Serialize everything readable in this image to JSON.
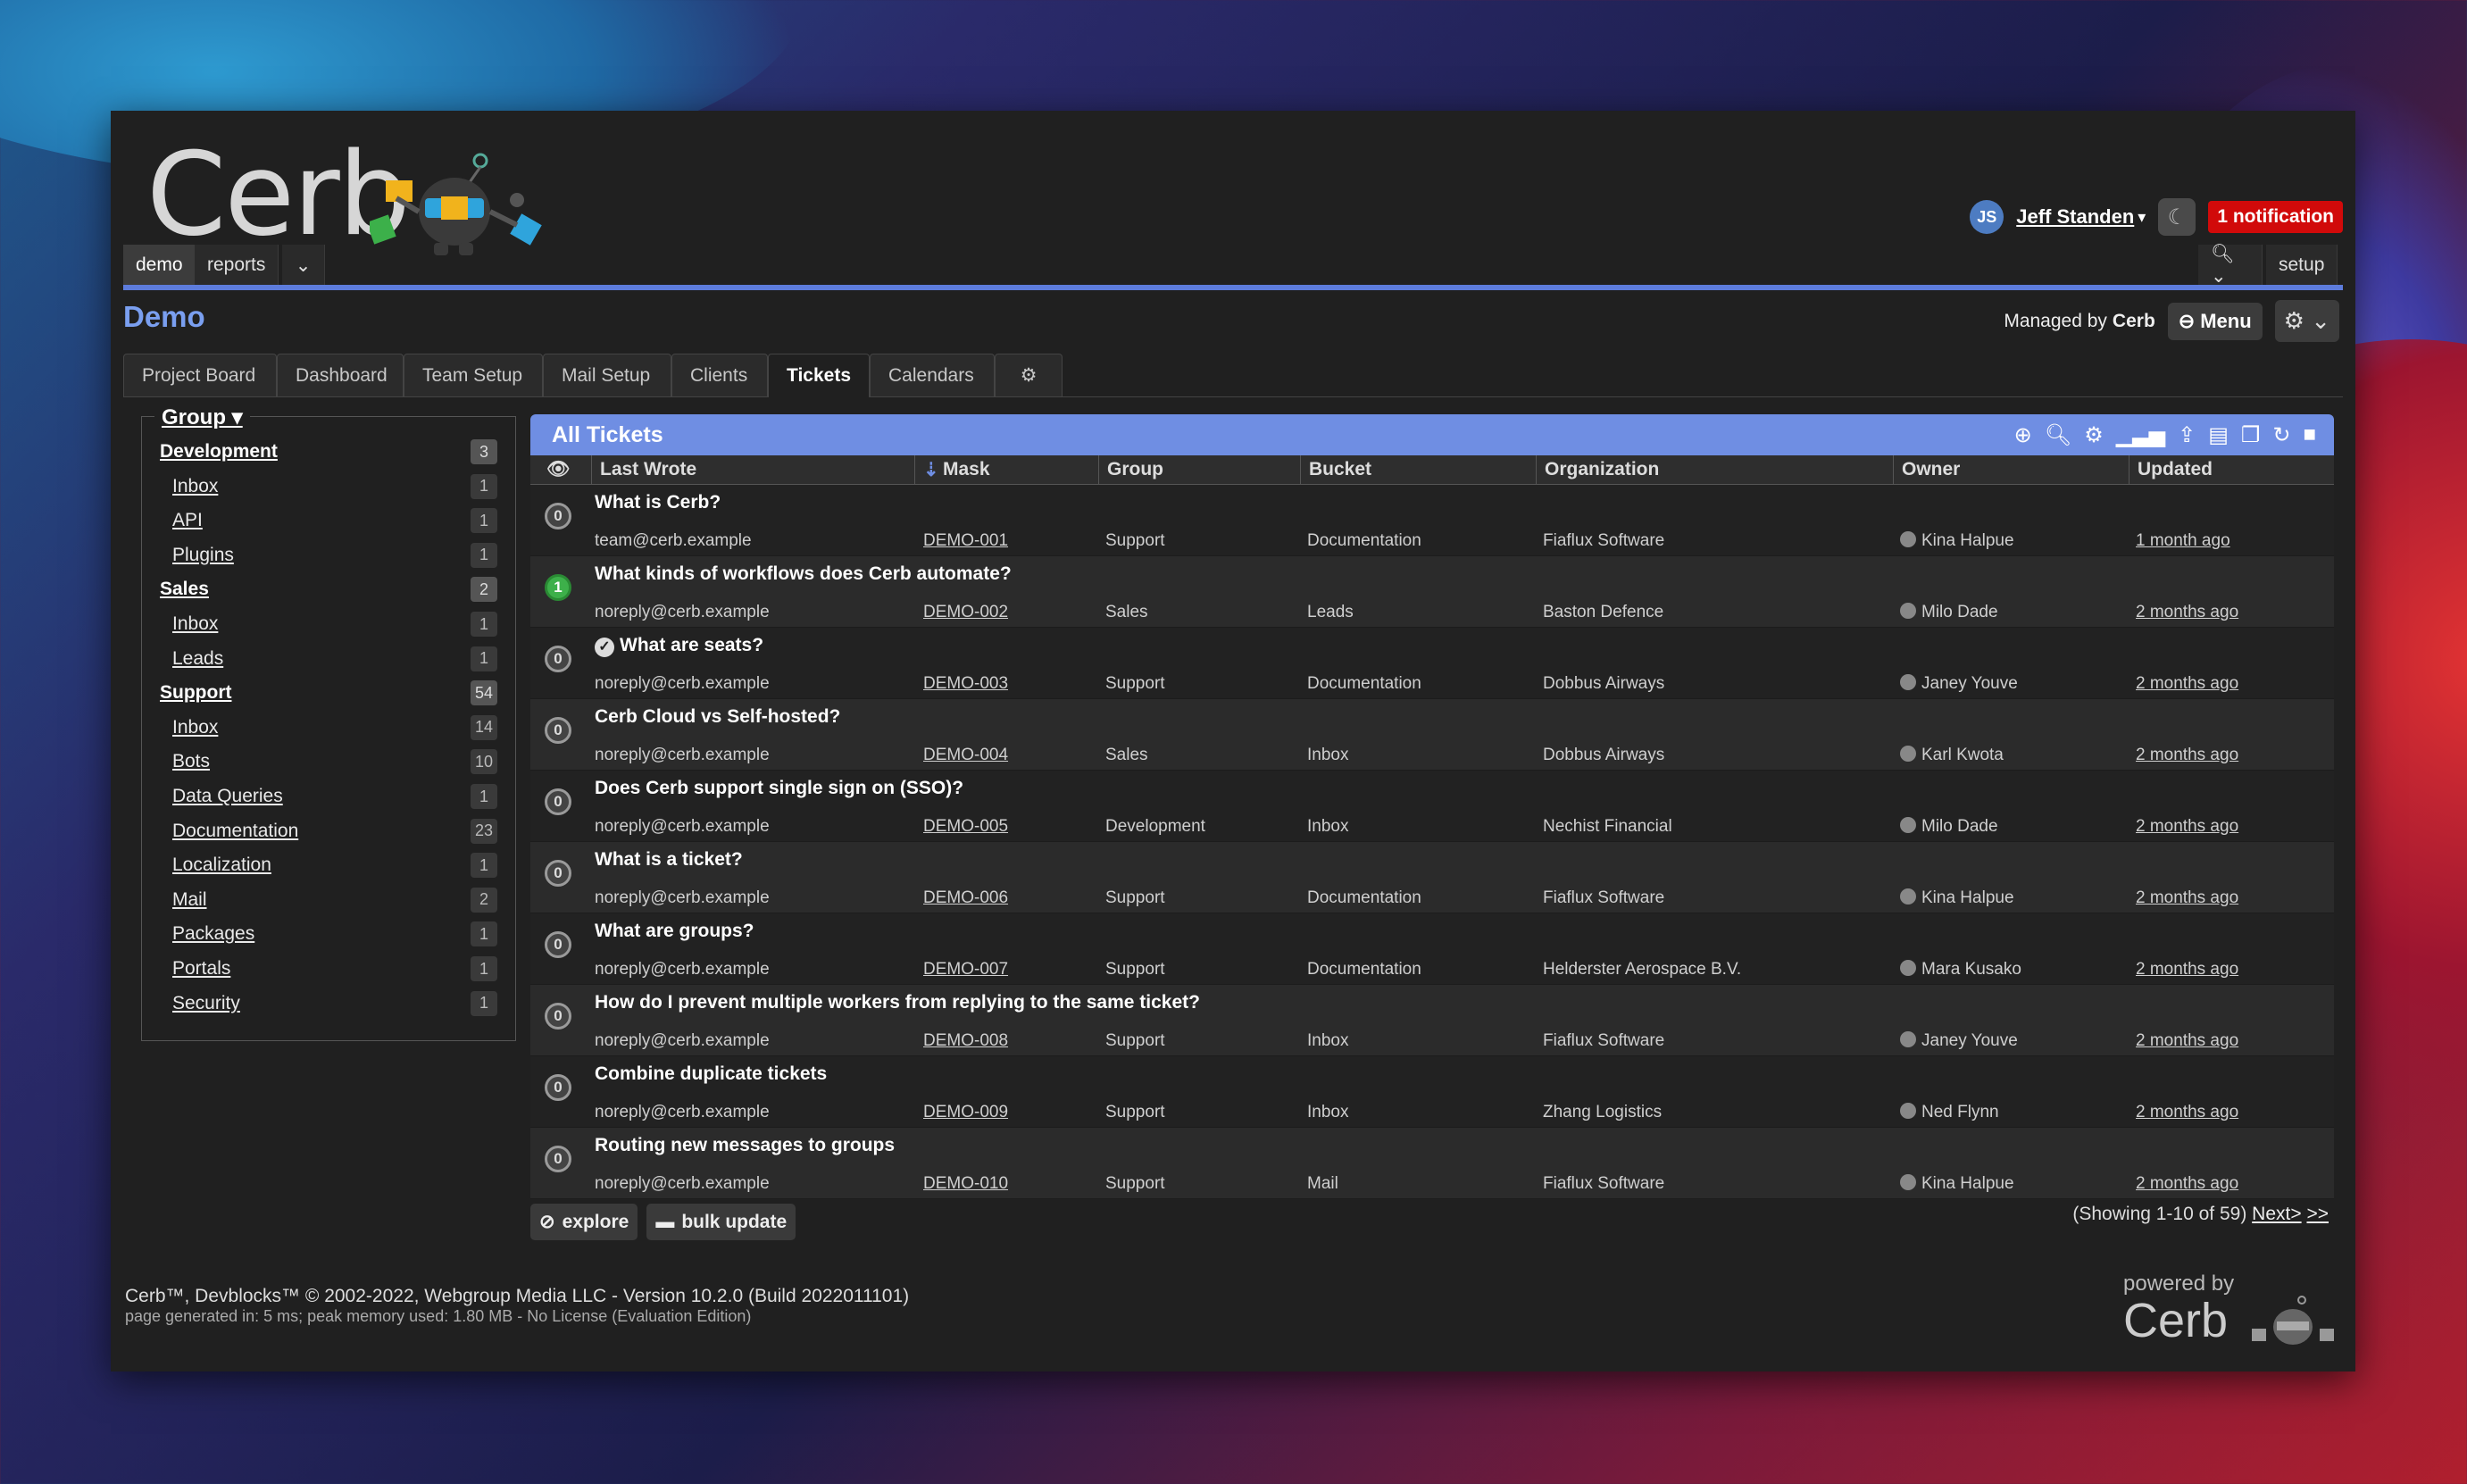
{
  "app": {
    "logo_text": "Cerb"
  },
  "user": {
    "initials": "JS",
    "name": "Jeff Standen",
    "notifications": "1 notification"
  },
  "topnav": {
    "tabs": [
      "demo",
      "reports"
    ],
    "setup": "setup"
  },
  "page": {
    "title": "Demo",
    "managed_by_label": "Managed by",
    "managed_by": "Cerb",
    "menu": "Menu"
  },
  "tabs": [
    "Project Board",
    "Dashboard",
    "Team Setup",
    "Mail Setup",
    "Clients",
    "Tickets",
    "Calendars"
  ],
  "groups": {
    "legend": "Group",
    "items": [
      {
        "label": "Development",
        "count": "3",
        "top": true
      },
      {
        "label": "Inbox",
        "count": "1"
      },
      {
        "label": "API",
        "count": "1"
      },
      {
        "label": "Plugins",
        "count": "1"
      },
      {
        "label": "Sales",
        "count": "2",
        "top": true
      },
      {
        "label": "Inbox",
        "count": "1"
      },
      {
        "label": "Leads",
        "count": "1"
      },
      {
        "label": "Support",
        "count": "54",
        "top": true
      },
      {
        "label": "Inbox",
        "count": "14"
      },
      {
        "label": "Bots",
        "count": "10"
      },
      {
        "label": "Data Queries",
        "count": "1"
      },
      {
        "label": "Documentation",
        "count": "23"
      },
      {
        "label": "Localization",
        "count": "1"
      },
      {
        "label": "Mail",
        "count": "2"
      },
      {
        "label": "Packages",
        "count": "1"
      },
      {
        "label": "Portals",
        "count": "1"
      },
      {
        "label": "Security",
        "count": "1"
      }
    ]
  },
  "worklist": {
    "title": "All Tickets",
    "columns": [
      "Last Wrote",
      "Mask",
      "Group",
      "Bucket",
      "Organization",
      "Owner",
      "Updated"
    ],
    "rows": [
      {
        "badge": "0",
        "subject": "What is Cerb?",
        "wrote": "team@cerb.example",
        "mask": "DEMO-001",
        "group": "Support",
        "bucket": "Documentation",
        "org": "Fiaflux Software",
        "owner": "Kina Halpue",
        "updated": "1 month ago"
      },
      {
        "badge": "1",
        "subject": "What kinds of workflows does Cerb automate?",
        "wrote": "noreply@cerb.example",
        "mask": "DEMO-002",
        "group": "Sales",
        "bucket": "Leads",
        "org": "Baston Defence",
        "owner": "Milo Dade",
        "updated": "2 months ago"
      },
      {
        "badge": "0",
        "subject": "What are seats?",
        "wrote": "noreply@cerb.example",
        "mask": "DEMO-003",
        "group": "Support",
        "bucket": "Documentation",
        "org": "Dobbus Airways",
        "owner": "Janey Youve",
        "updated": "2 months ago"
      },
      {
        "badge": "0",
        "subject": "Cerb Cloud vs Self-hosted?",
        "wrote": "noreply@cerb.example",
        "mask": "DEMO-004",
        "group": "Sales",
        "bucket": "Inbox",
        "org": "Dobbus Airways",
        "owner": "Karl Kwota",
        "updated": "2 months ago"
      },
      {
        "badge": "0",
        "subject": "Does Cerb support single sign on (SSO)?",
        "wrote": "noreply@cerb.example",
        "mask": "DEMO-005",
        "group": "Development",
        "bucket": "Inbox",
        "org": "Nechist Financial",
        "owner": "Milo Dade",
        "updated": "2 months ago"
      },
      {
        "badge": "0",
        "subject": "What is a ticket?",
        "wrote": "noreply@cerb.example",
        "mask": "DEMO-006",
        "group": "Support",
        "bucket": "Documentation",
        "org": "Fiaflux Software",
        "owner": "Kina Halpue",
        "updated": "2 months ago"
      },
      {
        "badge": "0",
        "subject": "What are groups?",
        "wrote": "noreply@cerb.example",
        "mask": "DEMO-007",
        "group": "Support",
        "bucket": "Documentation",
        "org": "Helderster Aerospace B.V.",
        "owner": "Mara Kusako",
        "updated": "2 months ago"
      },
      {
        "badge": "0",
        "subject": "How do I prevent multiple workers from replying to the same ticket?",
        "wrote": "noreply@cerb.example",
        "mask": "DEMO-008",
        "group": "Support",
        "bucket": "Inbox",
        "org": "Fiaflux Software",
        "owner": "Janey Youve",
        "updated": "2 months ago"
      },
      {
        "badge": "0",
        "subject": "Combine duplicate tickets",
        "wrote": "noreply@cerb.example",
        "mask": "DEMO-009",
        "group": "Support",
        "bucket": "Inbox",
        "org": "Zhang Logistics",
        "owner": "Ned Flynn",
        "updated": "2 months ago"
      },
      {
        "badge": "0",
        "subject": "Routing new messages to groups",
        "wrote": "noreply@cerb.example",
        "mask": "DEMO-010",
        "group": "Support",
        "bucket": "Mail",
        "org": "Fiaflux Software",
        "owner": "Kina Halpue",
        "updated": "2 months ago"
      }
    ],
    "explore": "explore",
    "bulk_update": "bulk update",
    "paging_text": "(Showing 1-10 of 59)",
    "next": "Next>",
    "last": ">>"
  },
  "footer": {
    "line1": "Cerb™, Devblocks™ © 2002-2022, Webgroup Media LLC - Version 10.2.0 (Build 2022011101)",
    "line2": "page generated in: 5 ms; peak memory used: 1.80 MB - No License (Evaluation Edition)",
    "powered_by": "powered by",
    "powered_name": "Cerb"
  },
  "colors": {
    "accent": "#5d7cdc",
    "header_bar": "#6f8ee3",
    "notification": "#d10a0a",
    "title": "#7a9ff0"
  }
}
